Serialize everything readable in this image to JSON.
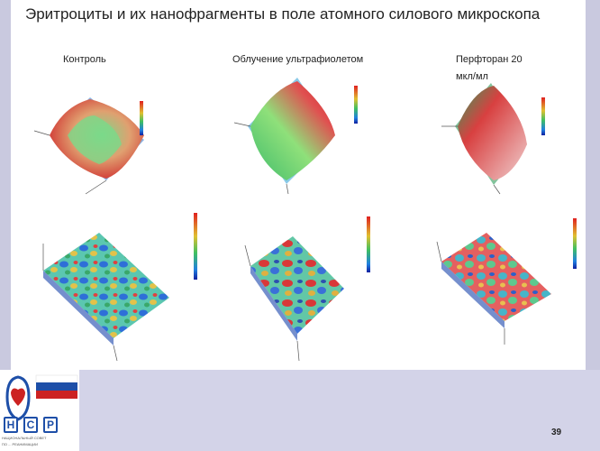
{
  "slide": {
    "title": "Эритроциты и их нанофрагменты в поле атомного силового микроскопа",
    "page_number": "39"
  },
  "columns": [
    {
      "label": "Контроль"
    },
    {
      "label": "Облучение ультрафиолетом"
    },
    {
      "label_line1": "Перфторан 20",
      "label_line2": "мкл/мл"
    }
  ],
  "logo": {
    "abbreviation_letters": [
      "Н",
      "С",
      "Р"
    ],
    "caption_line1": "НАЦИОНАЛЬНЫЙ СОВЕТ",
    "caption_line2": "ПО ... РЕАНИМАЦИИ"
  },
  "colors": {
    "background": "#d3d3e8",
    "content": "#ffffff",
    "logo_red": "#cc2222",
    "logo_blue": "#1e4fa8"
  }
}
